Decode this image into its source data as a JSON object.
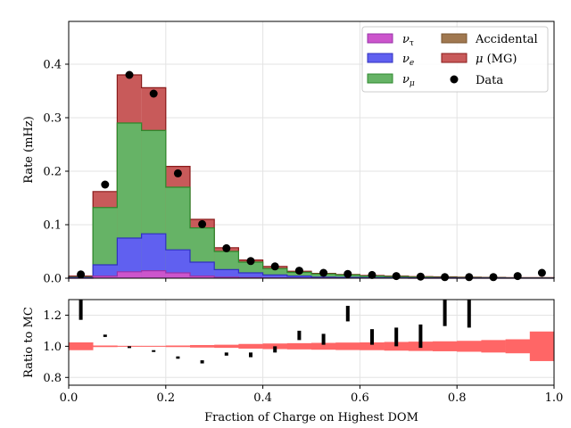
{
  "chart_data": [
    {
      "type": "bar",
      "stacked": true,
      "histogram": true,
      "title": "",
      "ylabel": "Rate (mHz)",
      "xlim": [
        0.0,
        1.0
      ],
      "ylim": [
        0.0,
        0.48
      ],
      "grid": true,
      "legend_position": "top-right",
      "bin_edges": [
        0.0,
        0.05,
        0.1,
        0.15,
        0.2,
        0.25,
        0.3,
        0.35,
        0.4,
        0.45,
        0.5,
        0.55,
        0.6,
        0.65,
        0.7,
        0.75,
        0.8,
        0.85,
        0.9,
        0.95,
        1.0
      ],
      "x_tick_values": [
        0.0,
        0.2,
        0.4,
        0.6,
        0.8,
        1.0
      ],
      "y_ticks": [
        "0.0",
        "0.1",
        "0.2",
        "0.3",
        "0.4"
      ],
      "y_tick_values": [
        0.0,
        0.1,
        0.2,
        0.3,
        0.4
      ],
      "series": [
        {
          "name": "ν_τ",
          "color": "#cc55cc",
          "edge": "#9933aa",
          "cumulative_top": [
            0.0,
            0.004,
            0.012,
            0.014,
            0.01,
            0.004,
            0.002,
            0.001,
            0.0005,
            0.0003,
            0.0002,
            0.0001,
            0.0001,
            0.0001,
            0.0,
            0.0,
            0.0,
            0.0,
            0.0,
            0.0
          ]
        },
        {
          "name": "ν_e",
          "color": "#6060f0",
          "edge": "#3030c0",
          "cumulative_top": [
            0.001,
            0.025,
            0.075,
            0.083,
            0.053,
            0.03,
            0.016,
            0.01,
            0.006,
            0.004,
            0.002,
            0.0015,
            0.001,
            0.0008,
            0.0005,
            0.0004,
            0.0003,
            0.0002,
            0.0001,
            0.0001
          ]
        },
        {
          "name": "ν_μ",
          "color": "#66b366",
          "edge": "#2d8a2d",
          "cumulative_top": [
            0.002,
            0.132,
            0.29,
            0.276,
            0.17,
            0.094,
            0.05,
            0.03,
            0.018,
            0.011,
            0.008,
            0.006,
            0.004,
            0.003,
            0.002,
            0.0015,
            0.001,
            0.0008,
            0.0005,
            0.0004
          ]
        },
        {
          "name": "Accidental",
          "color": "#a07850",
          "edge": "#7a5630",
          "cumulative_top": [
            0.002,
            0.132,
            0.29,
            0.276,
            0.17,
            0.094,
            0.05,
            0.03,
            0.018,
            0.011,
            0.008,
            0.006,
            0.004,
            0.003,
            0.002,
            0.0015,
            0.001,
            0.0008,
            0.0005,
            0.0004
          ]
        },
        {
          "name": "μ (MG)",
          "color": "#c85a5a",
          "edge": "#8a1a1a",
          "cumulative_top": [
            0.004,
            0.162,
            0.38,
            0.356,
            0.209,
            0.11,
            0.057,
            0.034,
            0.022,
            0.013,
            0.009,
            0.007,
            0.005,
            0.004,
            0.003,
            0.0025,
            0.002,
            0.0015,
            0.001,
            0.001
          ]
        }
      ],
      "data_points": {
        "name": "Data",
        "x": [
          0.025,
          0.075,
          0.125,
          0.175,
          0.225,
          0.275,
          0.325,
          0.375,
          0.425,
          0.475,
          0.525,
          0.575,
          0.625,
          0.675,
          0.725,
          0.775,
          0.825,
          0.875,
          0.925,
          0.975
        ],
        "y": [
          0.007,
          0.175,
          0.38,
          0.345,
          0.196,
          0.101,
          0.056,
          0.032,
          0.022,
          0.014,
          0.01,
          0.008,
          0.006,
          0.004,
          0.003,
          0.002,
          0.002,
          0.002,
          0.004,
          0.01
        ]
      }
    },
    {
      "type": "scatter",
      "title": "",
      "xlabel": "Fraction of Charge on Highest DOM",
      "ylabel": "Ratio to MC",
      "xlim": [
        0.0,
        1.0
      ],
      "ylim": [
        0.75,
        1.3
      ],
      "grid": true,
      "x_ticks": [
        "0.0",
        "0.2",
        "0.4",
        "0.6",
        "0.8",
        "1.0"
      ],
      "x_tick_values": [
        0.0,
        0.2,
        0.4,
        0.6,
        0.8,
        1.0
      ],
      "y_ticks": [
        "0.8",
        "1.0",
        "1.2"
      ],
      "y_tick_values": [
        0.8,
        1.0,
        1.2
      ],
      "mc_band": {
        "color": "#ff6666",
        "bin_edges": [
          0.0,
          0.05,
          0.1,
          0.15,
          0.2,
          0.25,
          0.3,
          0.35,
          0.4,
          0.45,
          0.5,
          0.55,
          0.6,
          0.65,
          0.7,
          0.75,
          0.8,
          0.85,
          0.9,
          0.95,
          1.0
        ],
        "low": [
          0.975,
          0.995,
          0.997,
          0.997,
          0.995,
          0.992,
          0.99,
          0.985,
          0.982,
          0.98,
          0.978,
          0.976,
          0.975,
          0.972,
          0.97,
          0.968,
          0.965,
          0.96,
          0.955,
          0.905
        ],
        "high": [
          1.025,
          1.005,
          1.003,
          1.003,
          1.005,
          1.008,
          1.01,
          1.015,
          1.018,
          1.02,
          1.022,
          1.024,
          1.025,
          1.028,
          1.03,
          1.032,
          1.035,
          1.04,
          1.045,
          1.095
        ]
      },
      "ratio_points": {
        "x": [
          0.025,
          0.075,
          0.125,
          0.175,
          0.225,
          0.275,
          0.325,
          0.375,
          0.425,
          0.475,
          0.525,
          0.575,
          0.625,
          0.675,
          0.725,
          0.775,
          0.825
        ],
        "low": [
          1.17,
          1.06,
          0.99,
          0.965,
          0.92,
          0.89,
          0.94,
          0.93,
          0.96,
          1.04,
          1.01,
          1.16,
          1.01,
          1.0,
          0.99,
          1.13,
          1.12
        ],
        "high": [
          1.3,
          1.075,
          1.0,
          0.975,
          0.935,
          0.91,
          0.96,
          0.96,
          1.0,
          1.1,
          1.08,
          1.26,
          1.11,
          1.12,
          1.14,
          1.3,
          1.3
        ]
      }
    }
  ]
}
